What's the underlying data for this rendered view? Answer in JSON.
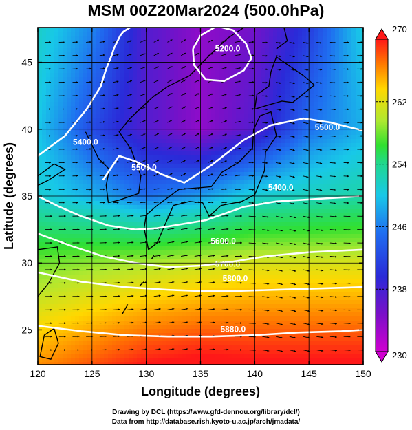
{
  "chart_data": {
    "type": "heatmap",
    "title": "MSM 00Z20Mar2024 (500.0hPa)",
    "xlabel": "Longitude (degrees)",
    "ylabel": "Latitude  (degrees)",
    "xlim": [
      120,
      150
    ],
    "ylim": [
      22.4,
      47.6
    ],
    "xticks": [
      120,
      125,
      130,
      135,
      140,
      145,
      150
    ],
    "yticks": [
      25,
      30,
      35,
      40,
      45
    ],
    "grid": true,
    "colorbar": {
      "min": 230,
      "max": 270,
      "ticks": [
        230,
        238,
        246,
        254,
        262,
        270
      ],
      "colors": [
        "#d000d0",
        "#7a10c8",
        "#2a2ad8",
        "#1f6ef0",
        "#18c8e8",
        "#20d890",
        "#30e030",
        "#b0e830",
        "#ffd800",
        "#ff7a00",
        "#ff1818"
      ]
    },
    "temperature_grid": {
      "lon": [
        120,
        125,
        130,
        135,
        140,
        145,
        150
      ],
      "lat": [
        25,
        30,
        35,
        40,
        45
      ],
      "values": [
        [
          262,
          264,
          266,
          267,
          267,
          267,
          267
        ],
        [
          256,
          257,
          258,
          259,
          260,
          260,
          260
        ],
        [
          247,
          245,
          242,
          244,
          247,
          248,
          249
        ],
        [
          246,
          240,
          236,
          233,
          236,
          242,
          245
        ],
        [
          247,
          242,
          236,
          233,
          235,
          240,
          246
        ]
      ]
    },
    "contours": [
      {
        "label": "5200.0",
        "lon": [
          134.3,
          135.0,
          136.5,
          138.0,
          139.2,
          139.7,
          139.0,
          137.2,
          135.5,
          134.4,
          134.3
        ],
        "lat": [
          46.0,
          47.0,
          47.7,
          47.4,
          46.4,
          45.3,
          44.4,
          43.6,
          43.7,
          44.8,
          46.0
        ]
      },
      {
        "label": "5400.0",
        "lon": [
          120.0,
          122.5,
          124.5,
          125.8,
          126.3,
          126.8,
          127.0,
          127.3,
          127.6,
          127.9,
          128.5,
          129.2,
          130.2,
          131.5
        ],
        "lat": [
          38.0,
          39.5,
          41.5,
          43.2,
          44.5,
          45.5,
          46.0,
          46.5,
          47.0,
          47.3,
          47.6,
          47.8,
          48.0,
          48.0
        ]
      },
      {
        "label": "5500.0",
        "lon": [
          126.0,
          127.5,
          129.0,
          131.5,
          133.5,
          136.0,
          139.0,
          141.5,
          144.5,
          147.0,
          150.0
        ],
        "lat": [
          36.2,
          38.0,
          37.6,
          36.6,
          36.0,
          37.3,
          39.2,
          40.3,
          40.8,
          40.5,
          39.9
        ]
      },
      {
        "label": "5600.0",
        "lon": [
          120.0,
          122.0,
          124.0,
          126.5,
          129.0,
          131.0,
          135.5,
          139.0,
          142.0,
          146.0,
          150.0
        ],
        "lat": [
          35.0,
          34.2,
          33.5,
          32.8,
          32.5,
          32.6,
          33.2,
          34.2,
          34.6,
          34.8,
          35.0
        ]
      },
      {
        "label": "5700.0",
        "lon": [
          120.0,
          123.0,
          126.0,
          129.0,
          132.0,
          135.0,
          138.0,
          141.0,
          145.0,
          150.0
        ],
        "lat": [
          32.2,
          31.3,
          30.5,
          30.0,
          29.7,
          29.8,
          30.1,
          30.5,
          30.8,
          31.0
        ]
      },
      {
        "label": "5800.0",
        "lon": [
          120.0,
          124.0,
          128.0,
          132.0,
          135.0,
          138.0,
          142.0,
          146.0,
          150.0
        ],
        "lat": [
          29.3,
          28.6,
          28.2,
          28.0,
          27.9,
          27.9,
          28.0,
          28.1,
          28.2
        ]
      },
      {
        "label": "5880.0",
        "lon": [
          120.0,
          124.0,
          128.0,
          132.0,
          136.0,
          140.0,
          144.0,
          148.0,
          150.0
        ],
        "lat": [
          25.3,
          24.9,
          24.6,
          24.5,
          24.5,
          24.6,
          24.8,
          24.9,
          25.0
        ]
      }
    ],
    "contour_labels": [
      {
        "text": "5200.0",
        "lon": 137.5,
        "lat": 46.0
      },
      {
        "text": "5400.0",
        "lon": 124.4,
        "lat": 39.0
      },
      {
        "text": "5500.0",
        "lon": 129.8,
        "lat": 37.1
      },
      {
        "text": "5500.0",
        "lon": 146.7,
        "lat": 40.1
      },
      {
        "text": "5400.0",
        "lon": 142.4,
        "lat": 35.6
      },
      {
        "text": "5600.0",
        "lon": 137.1,
        "lat": 31.6
      },
      {
        "text": "5700.0",
        "lon": 137.5,
        "lat": 29.9
      },
      {
        "text": "5800.0",
        "lon": 138.2,
        "lat": 28.8
      },
      {
        "text": "5880.0",
        "lon": 138.0,
        "lat": 25.0
      }
    ]
  },
  "credits": {
    "line1": "Drawing by DCL (https://www.gfd-dennou.org/library/dcl/)",
    "line2": "Data from http://database.rish.kyoto-u.ac.jp/arch/jmadata/"
  }
}
